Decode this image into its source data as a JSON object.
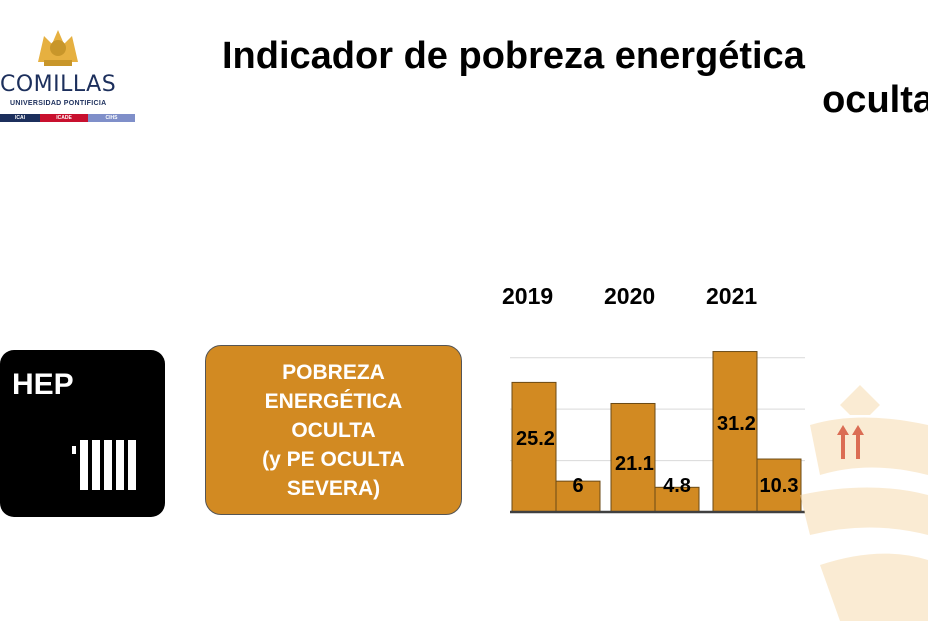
{
  "header": {
    "title_line1": "Indicador de pobreza energética",
    "title_line2": "oculta"
  },
  "logo": {
    "name": "COMILLAS",
    "subtitle": "UNIVERSIDAD PONTIFICIA",
    "bar_labels": [
      "ICAI",
      "ICADE",
      "CIHS"
    ],
    "colors": [
      "#1c2f5c",
      "#c8102e",
      "#7f8fc9"
    ]
  },
  "hep_card": {
    "label": "HEP"
  },
  "indicator_card": {
    "lines": [
      "POBREZA",
      "ENERGÉTICA",
      "OCULTA",
      "(y PE OCULTA",
      "SEVERA)"
    ]
  },
  "trend": {
    "icon": "double-up-arrow-icon",
    "color": "#c00000"
  },
  "colors": {
    "bar": "#d28a22",
    "bar_border": "#6b4a15",
    "box": "#d28a22"
  },
  "chart_data": {
    "type": "bar",
    "categories": [
      "2019",
      "2020",
      "2021"
    ],
    "series": [
      {
        "name": "Pobreza energética oculta",
        "values": [
          25.2,
          21.1,
          31.2
        ]
      },
      {
        "name": "PE oculta severa",
        "values": [
          6,
          4.8,
          10.3
        ]
      }
    ],
    "value_labels": [
      [
        "25.2",
        "6"
      ],
      [
        "21.1",
        "4.8"
      ],
      [
        "31.2",
        "10.3"
      ]
    ],
    "title": "",
    "xlabel": "",
    "ylabel": "",
    "ylim": [
      0,
      35
    ],
    "grid": true,
    "legend": "none"
  }
}
